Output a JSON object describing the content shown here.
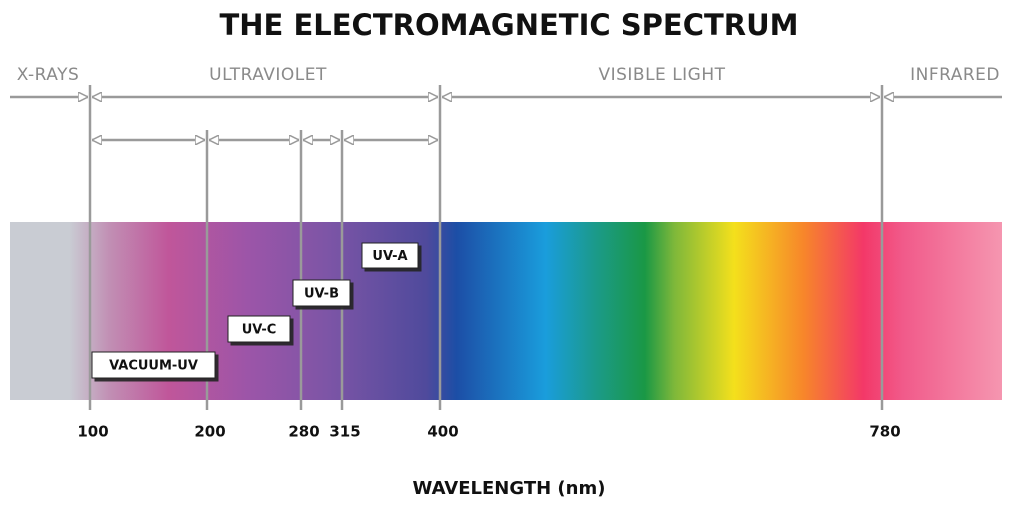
{
  "title": "THE ELECTROMAGNETIC SPECTRUM",
  "regions": [
    "X-RAYS",
    "ULTRAVIOLET",
    "VISIBLE LIGHT",
    "INFRARED"
  ],
  "uv_bands": [
    "VACUUM-UV",
    "UV-C",
    "UV-B",
    "UV-A"
  ],
  "wavelengths": [
    100,
    200,
    280,
    315,
    400,
    780
  ],
  "axis_label": "WAVELENGTH (nm)"
}
